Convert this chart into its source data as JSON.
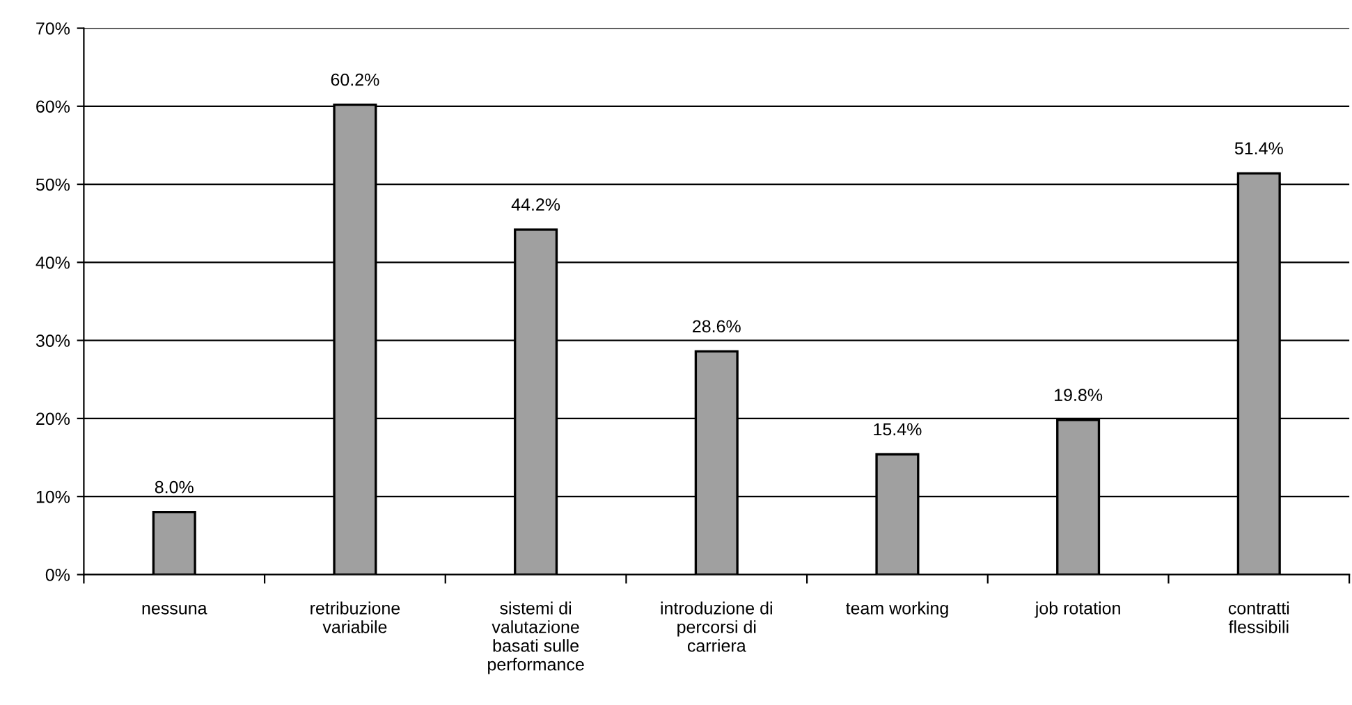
{
  "chart_data": {
    "type": "bar",
    "categories": [
      "nessuna",
      "retribuzione\nvariabile",
      "sistemi di\nvalutazione\nbasati sulle\nperformance",
      "introduzione di\npercorsi di\ncarriera",
      "team working",
      "job rotation",
      "contratti\nflessibili"
    ],
    "values": [
      8.0,
      60.2,
      44.2,
      28.6,
      15.4,
      19.8,
      51.4
    ],
    "color": "#a0a0a0",
    "value_labels": [
      "8.0%",
      "60.2%",
      "44.2%",
      "28.6%",
      "15.4%",
      "19.8%",
      "51.4%"
    ],
    "ylim": [
      0,
      70
    ],
    "yticks": [
      {
        "value": 0,
        "label": "0%"
      },
      {
        "value": 10,
        "label": "10%"
      },
      {
        "value": 20,
        "label": "20%"
      },
      {
        "value": 30,
        "label": "30%"
      },
      {
        "value": 40,
        "label": "40%"
      },
      {
        "value": 50,
        "label": "50%"
      },
      {
        "value": 60,
        "label": "60%"
      },
      {
        "value": 70,
        "label": "70%"
      }
    ],
    "grid": "y",
    "legend": false
  }
}
